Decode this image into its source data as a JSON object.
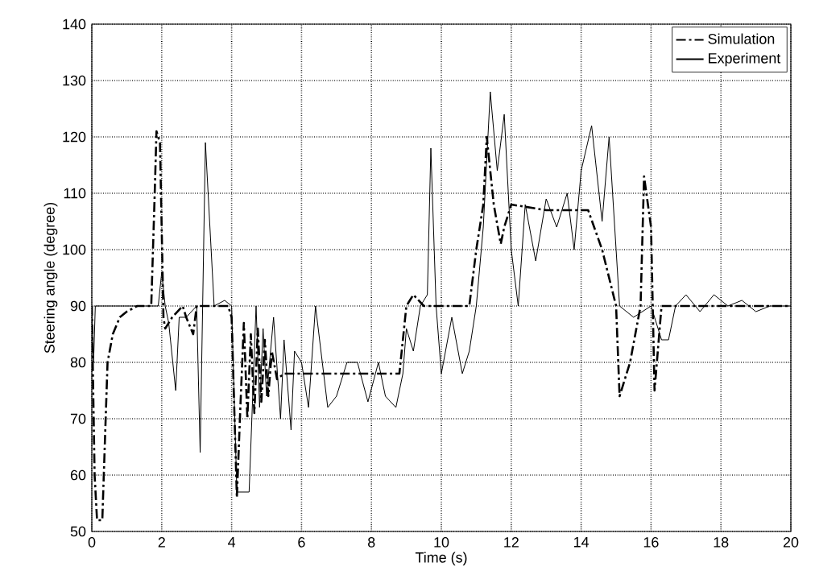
{
  "chart_data": {
    "type": "line",
    "xlabel": "Time (s)",
    "ylabel": "Steering angle (degree)",
    "xlim": [
      0,
      20
    ],
    "ylim": [
      50,
      140
    ],
    "xticks": [
      0,
      2,
      4,
      6,
      8,
      10,
      12,
      14,
      16,
      18,
      20
    ],
    "yticks": [
      50,
      60,
      70,
      80,
      90,
      100,
      110,
      120,
      130,
      140
    ],
    "grid": true,
    "legend": "top right",
    "marker": "none",
    "series": [
      {
        "name": "Simulation",
        "color": "#000000",
        "line_style": "dashdot",
        "x": [
          0,
          0.08,
          0.15,
          0.3,
          0.45,
          0.6,
          0.8,
          1.0,
          1.3,
          1.7,
          1.8,
          1.85,
          1.95,
          2.05,
          2.1,
          2.3,
          2.6,
          2.7,
          2.9,
          3.0,
          3.9,
          4.0,
          4.15,
          4.25,
          4.35,
          4.45,
          4.55,
          4.65,
          4.75,
          4.85,
          4.95,
          5.05,
          5.15,
          5.3,
          5.5,
          6.0,
          7.0,
          8.0,
          8.8,
          9.0,
          9.2,
          9.5,
          10.8,
          11.0,
          11.2,
          11.3,
          11.5,
          11.7,
          11.8,
          12.0,
          13.0,
          14.2,
          14.6,
          15.0,
          15.1,
          15.4,
          15.7,
          15.8,
          16.0,
          16.1,
          16.3,
          17.0,
          18.0,
          19.0,
          20.0
        ],
        "values": [
          90,
          60,
          52,
          52,
          80,
          85,
          88,
          89,
          90,
          90,
          110,
          121,
          119,
          88,
          86,
          88,
          90,
          88,
          85,
          90,
          90,
          88,
          56,
          72,
          87,
          70,
          85,
          71,
          86,
          73,
          84,
          74,
          82,
          77,
          78,
          78,
          78,
          78,
          78,
          90,
          92,
          90,
          90,
          100,
          108,
          120,
          108,
          101,
          104,
          108,
          107,
          107,
          100,
          90,
          74,
          80,
          90,
          113,
          104,
          75,
          90,
          90,
          90,
          90,
          90
        ]
      },
      {
        "name": "Experiment",
        "color": "#000000",
        "line_style": "solid",
        "x": [
          0,
          0.05,
          0.1,
          0.5,
          1.0,
          1.9,
          2.0,
          2.1,
          2.2,
          2.4,
          2.5,
          2.7,
          3.0,
          3.1,
          3.25,
          3.5,
          3.8,
          4.0,
          4.15,
          4.5,
          4.7,
          4.8,
          4.9,
          5.0,
          5.2,
          5.4,
          5.5,
          5.7,
          5.8,
          6.0,
          6.2,
          6.4,
          6.75,
          7.0,
          7.3,
          7.6,
          7.9,
          8.2,
          8.4,
          8.7,
          8.9,
          9.0,
          9.2,
          9.4,
          9.6,
          9.7,
          9.85,
          10.0,
          10.3,
          10.6,
          10.8,
          11.0,
          11.2,
          11.4,
          11.6,
          11.8,
          12.0,
          12.2,
          12.4,
          12.7,
          13.0,
          13.3,
          13.6,
          13.8,
          14.0,
          14.3,
          14.6,
          14.8,
          15.1,
          15.5,
          16.0,
          16.3,
          16.5,
          16.7,
          17.0,
          17.4,
          17.8,
          18.2,
          18.6,
          19.0,
          19.4,
          20.0
        ],
        "values": [
          90,
          80,
          90,
          90,
          90,
          90,
          96,
          90,
          87,
          75,
          88,
          88,
          90,
          64,
          119,
          90,
          91,
          90,
          57,
          57,
          90,
          72,
          86,
          74,
          88,
          70,
          84,
          68,
          82,
          80,
          72,
          90,
          72,
          74,
          80,
          80,
          73,
          80,
          74,
          72,
          78,
          86,
          82,
          90,
          92,
          118,
          90,
          78,
          88,
          78,
          82,
          90,
          104,
          128,
          114,
          124,
          100,
          90,
          108,
          98,
          109,
          104,
          110,
          100,
          114,
          122,
          105,
          120,
          90,
          88,
          90,
          84,
          84,
          90,
          92,
          89,
          92,
          90,
          91,
          89,
          90,
          90
        ]
      }
    ]
  }
}
